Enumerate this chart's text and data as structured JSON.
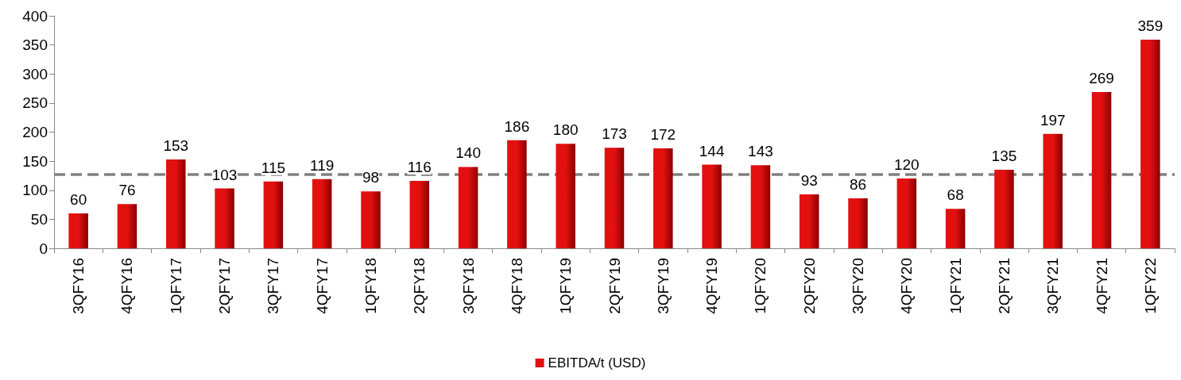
{
  "chart_data": {
    "type": "bar",
    "categories": [
      "3QFY16",
      "4QFY16",
      "1QFY17",
      "2QFY17",
      "3QFY17",
      "4QFY17",
      "1QFY18",
      "2QFY18",
      "3QFY18",
      "4QFY18",
      "1QFY19",
      "2QFY19",
      "3QFY19",
      "4QFY19",
      "1QFY20",
      "2QFY20",
      "3QFY20",
      "4QFY20",
      "1QFY21",
      "2QFY21",
      "3QFY21",
      "4QFY21",
      "1QFY22"
    ],
    "series": [
      {
        "name": "EBITDA/t (USD)",
        "color": "#e31010",
        "values": [
          60,
          76,
          153,
          103,
          115,
          119,
          98,
          116,
          140,
          186,
          180,
          173,
          172,
          144,
          143,
          93,
          86,
          120,
          68,
          135,
          197,
          269,
          359
        ]
      }
    ],
    "ylim": [
      0,
      400
    ],
    "yticks": [
      0,
      50,
      100,
      150,
      200,
      250,
      300,
      350,
      400
    ],
    "ref_lines": [
      {
        "axis": "y",
        "value": 127,
        "color": "#808080",
        "line_style": "dashed"
      }
    ],
    "data_labels": true,
    "grid": false,
    "legend": "bottom"
  }
}
